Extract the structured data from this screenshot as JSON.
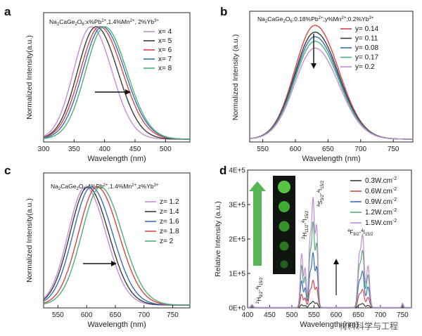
{
  "chart_data": [
    {
      "type": "line",
      "panel_label": "a",
      "title_parts": [
        "Na",
        "2",
        "CaGe",
        "2",
        "O",
        "6",
        ":x%Pb",
        "2+",
        ",1.4%Mn",
        "2+",
        ", 2%Yb",
        "3+"
      ],
      "xlabel": "Wavelength (nm)",
      "ylabel": "Normalized Intensity(a.u.)",
      "xlim": [
        300,
        540
      ],
      "xticks": [
        "300",
        "350",
        "400",
        "450",
        "500"
      ],
      "series": [
        {
          "name": "x= 4",
          "color": "#c58cd6",
          "peak": 378,
          "width": 42
        },
        {
          "name": "x= 5",
          "color": "#3a3a3a",
          "peak": 386,
          "width": 44
        },
        {
          "name": "x= 6",
          "color": "#d94646",
          "peak": 392,
          "width": 46
        },
        {
          "name": "x= 7",
          "color": "#3b6fb6",
          "peak": 396,
          "width": 46
        },
        {
          "name": "x= 8",
          "color": "#4bb07a",
          "peak": 400,
          "width": 45
        }
      ]
    },
    {
      "type": "line",
      "panel_label": "b",
      "title_parts": [
        "Na",
        "2",
        "CaGe",
        "2",
        "O",
        "6",
        ":0.18%Pb",
        "2+",
        ";y%Mn",
        "2+",
        ";0.2%Yb",
        "3+"
      ],
      "xlabel": "Wavelength (nm)",
      "ylabel": "Normalized Intensity (a.u.)",
      "xlim": [
        530,
        780
      ],
      "xticks": [
        "550",
        "600",
        "650",
        "700",
        "750"
      ],
      "series": [
        {
          "name": "y= 0.14",
          "color": "#d94646",
          "peak": 630,
          "width": 45,
          "amp": 1.0
        },
        {
          "name": "y= 0.11",
          "color": "#3a3a3a",
          "peak": 630,
          "width": 45,
          "amp": 0.94
        },
        {
          "name": "y= 0.08",
          "color": "#3b6fb6",
          "peak": 630,
          "width": 45,
          "amp": 0.9
        },
        {
          "name": "y= 0.17",
          "color": "#4bb07a",
          "peak": 630,
          "width": 45,
          "amp": 0.86
        },
        {
          "name": "y= 0.2",
          "color": "#c58cd6",
          "peak": 630,
          "width": 45,
          "amp": 0.8
        }
      ]
    },
    {
      "type": "line",
      "panel_label": "c",
      "title_parts": [
        "Na",
        "2",
        "CaGe",
        "2",
        "O",
        "6",
        ":4%Pb",
        "2+",
        ",1.4%Mn",
        "2+",
        ",z%Yb",
        "3+"
      ],
      "xlabel": "Wavelength (nm)",
      "ylabel": "Normalized Intensity(a.u.)",
      "xlim": [
        525,
        780
      ],
      "xticks": [
        "550",
        "600",
        "650",
        "700",
        "750"
      ],
      "series": [
        {
          "name": "z= 1.2",
          "color": "#c58cd6",
          "peak": 598,
          "width": 44
        },
        {
          "name": "z= 1.4",
          "color": "#3a3a3a",
          "peak": 602,
          "width": 45
        },
        {
          "name": "z= 1.6",
          "color": "#3b6fb6",
          "peak": 608,
          "width": 46
        },
        {
          "name": "z= 1.8",
          "color": "#d94646",
          "peak": 618,
          "width": 47
        },
        {
          "name": "z= 2",
          "color": "#4bb07a",
          "peak": 624,
          "width": 47
        }
      ]
    },
    {
      "type": "line",
      "panel_label": "d",
      "xlabel": "Wavelength (nm)",
      "ylabel": "Relative Intensity (a.u.)",
      "xlim": [
        400,
        770
      ],
      "ylim": [
        0,
        400000
      ],
      "xticks": [
        "400",
        "450",
        "500",
        "550",
        "600",
        "650",
        "700",
        "750"
      ],
      "yticks": [
        "0E+0",
        "1E+5",
        "2E+5",
        "3E+5",
        "4E+5"
      ],
      "annotations": {
        "h": [
          "2",
          "H",
          "9/2",
          "-",
          "4",
          "I",
          "15/2"
        ],
        "hs": [
          "2",
          "H",
          "11/2",
          "-",
          "4",
          "I",
          "15/2"
        ],
        "s": [
          "4",
          "S",
          "3/2",
          "-",
          "4",
          "I",
          "15/2"
        ],
        "f": [
          "4",
          "F",
          "9/2",
          "-",
          "4",
          "I",
          "15/2"
        ]
      },
      "series": [
        {
          "name": "0.3W.cm",
          "exp": "-2",
          "color": "#3a3a3a",
          "scale": 0.06
        },
        {
          "name": "0.6W.cm",
          "exp": "-2",
          "color": "#d94646",
          "scale": 0.25
        },
        {
          "name": "0.9W.cm",
          "exp": "-2",
          "color": "#3b6fb6",
          "scale": 0.5
        },
        {
          "name": "1.2W.cm",
          "exp": "-2",
          "color": "#4bb07a",
          "scale": 0.78
        },
        {
          "name": "1.5W.cm",
          "exp": "-2",
          "color": "#c58cd6",
          "scale": 1.0
        }
      ],
      "peaks": [
        {
          "center": 410,
          "width": 2.5,
          "amp": 8000
        },
        {
          "center": 522,
          "width": 3.0,
          "amp": 155000
        },
        {
          "center": 530,
          "width": 2.5,
          "amp": 110000
        },
        {
          "center": 541,
          "width": 3.0,
          "amp": 185000
        },
        {
          "center": 548,
          "width": 3.0,
          "amp": 300000
        },
        {
          "center": 556,
          "width": 3.0,
          "amp": 230000
        },
        {
          "center": 652,
          "width": 3.5,
          "amp": 140000
        },
        {
          "center": 660,
          "width": 3.5,
          "amp": 200000
        },
        {
          "center": 672,
          "width": 3.5,
          "amp": 120000
        },
        {
          "center": 750,
          "width": 2.0,
          "amp": 12000
        }
      ]
    }
  ],
  "watermark": "材料科学与工程"
}
